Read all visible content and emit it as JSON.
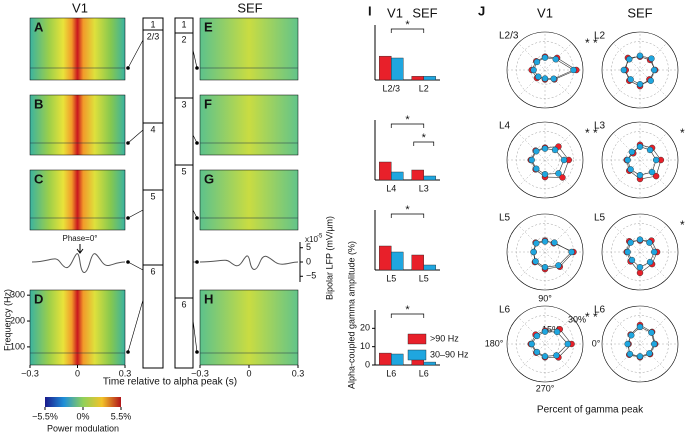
{
  "figure": {
    "v1_title": "V1",
    "sef_title": "SEF",
    "spectro_panels_v1": [
      "A",
      "B",
      "C",
      "D"
    ],
    "spectro_panels_sef": [
      "E",
      "F",
      "G",
      "H"
    ],
    "layers_v1": [
      "1",
      "2/3",
      "4",
      "5",
      "6"
    ],
    "layers_sef": [
      "1",
      "2",
      "3",
      "5",
      "6"
    ],
    "freq_label": "Frequency (Hz)",
    "freq_ticks": [
      100,
      200,
      300
    ],
    "freq_lim": [
      30,
      320
    ],
    "time_ticks": [
      {
        "value": -0.3,
        "label": "−0.3"
      },
      {
        "value": 0,
        "label": "0"
      },
      {
        "value": 0.3,
        "label": "0.3"
      }
    ],
    "time_lim": [
      -0.3,
      0.3
    ],
    "time_label": "Time relative to alpha peak (s)",
    "phase_label": "Phase=0°",
    "lfp_ticks": [
      5,
      0,
      {
        "value": -5,
        "label": "−5"
      }
    ],
    "lfp_lim": [
      -7,
      7
    ],
    "lfp_scale": "x10",
    "lfp_exp": "-5",
    "lfp_label": "Bipolar LFP (mV/µm)",
    "colorbar": {
      "lim": [
        -5.5,
        5.5
      ],
      "ticks": [
        {
          "value": -5.5,
          "label": "−5.5%"
        },
        {
          "value": 0,
          "label": "0%"
        },
        {
          "value": 5.5,
          "label": "5.5%"
        }
      ],
      "label": "Power modulation"
    },
    "panel_I": "I",
    "panel_J": "J",
    "I_v1": "V1",
    "I_sef": "SEF",
    "I_ylabel": "Alpha-coupled gamma amplitude (%)",
    "J_v1": "V1",
    "J_sef": "SEF",
    "J_xlabel": "Percent of gamma peak"
  },
  "chart_data": [
    {
      "type": "bar",
      "categories": [
        "L2/3",
        "L2"
      ],
      "ylim": [
        0,
        30
      ],
      "annotations": [
        "*"
      ],
      "series": [
        {
          "color": "#e8202a",
          "values": [
            13,
            2
          ]
        },
        {
          "color": "#1fa6df",
          "values": [
            12,
            2
          ]
        }
      ]
    },
    {
      "type": "bar",
      "categories": [
        "L4",
        "L3"
      ],
      "ylim": [
        0,
        30
      ],
      "annotations": [
        "*",
        "*"
      ],
      "series": [
        {
          "color": "#e8202a",
          "values": [
            9,
            5
          ]
        },
        {
          "color": "#1fa6df",
          "values": [
            4,
            2
          ]
        }
      ]
    },
    {
      "type": "bar",
      "categories": [
        "L5",
        "L5"
      ],
      "ylim": [
        0,
        30
      ],
      "annotations": [
        "*"
      ],
      "series": [
        {
          "color": "#e8202a",
          "values": [
            12,
            7.5
          ]
        },
        {
          "color": "#1fa6df",
          "values": [
            9,
            2.5
          ]
        }
      ]
    },
    {
      "type": "bar",
      "categories": [
        "L6",
        "L6"
      ],
      "ylim": [
        0,
        30
      ],
      "yticks": [
        0,
        10,
        20
      ],
      "annotations": [
        "*"
      ],
      "series": [
        {
          "name": ">90 Hz",
          "color": "#e8202a",
          "values": [
            6.5,
            3.3
          ]
        },
        {
          "name": "30–90 Hz",
          "color": "#1fa6df",
          "values": [
            6,
            1.6
          ]
        }
      ]
    },
    {
      "type": "polar",
      "title": "L2/3",
      "rlim": [
        0,
        40
      ],
      "angles": [
        0,
        45,
        90,
        135,
        180,
        225,
        270,
        315
      ],
      "annotations": [
        {
          "text": "*",
          "color": "#e8202a"
        },
        {
          "text": "*",
          "color": "#1fa6df"
        }
      ],
      "series": [
        {
          "color": "#e8202a",
          "values": [
            33,
            18,
            14,
            13,
            14,
            12,
            10,
            14
          ]
        },
        {
          "color": "#1fa6df",
          "values": [
            30,
            16,
            13,
            12,
            12,
            10,
            9,
            13
          ]
        }
      ]
    },
    {
      "type": "polar",
      "title": "L2",
      "rlim": [
        0,
        40
      ],
      "angles": [
        0,
        45,
        90,
        135,
        180,
        225,
        270,
        315
      ],
      "annotations": [],
      "series": [
        {
          "color": "#e8202a",
          "values": [
            16,
            15,
            14,
            18,
            15,
            16,
            17,
            14
          ]
        },
        {
          "color": "#1fa6df",
          "values": [
            15,
            17,
            15,
            16,
            17,
            14,
            15,
            16
          ]
        }
      ]
    },
    {
      "type": "polar",
      "title": "L4",
      "rlim": [
        0,
        40
      ],
      "angles": [
        0,
        45,
        90,
        135,
        180,
        225,
        270,
        315
      ],
      "annotations": [
        {
          "text": "*",
          "color": "#e8202a"
        },
        {
          "text": "*",
          "color": "#1fa6df"
        }
      ],
      "series": [
        {
          "color": "#e8202a",
          "values": [
            25,
            20,
            13,
            14,
            15,
            14,
            18,
            26
          ]
        },
        {
          "color": "#1fa6df",
          "values": [
            20,
            15,
            12,
            13,
            14,
            13,
            15,
            20
          ]
        }
      ]
    },
    {
      "type": "polar",
      "title": "L3",
      "rlim": [
        0,
        40
      ],
      "angles": [
        0,
        45,
        90,
        135,
        180,
        225,
        270,
        315
      ],
      "annotations": [
        {
          "text": "*",
          "color": "#e8202a"
        }
      ],
      "series": [
        {
          "color": "#e8202a",
          "values": [
            22,
            18,
            16,
            10,
            14,
            16,
            20,
            24
          ]
        },
        {
          "color": "#1fa6df",
          "values": [
            17,
            15,
            14,
            12,
            13,
            14,
            16,
            18
          ]
        }
      ]
    },
    {
      "type": "polar",
      "title": "L5",
      "rlim": [
        0,
        40
      ],
      "angles": [
        0,
        45,
        90,
        135,
        180,
        225,
        270,
        315
      ],
      "annotations": [],
      "series": [
        {
          "color": "#e8202a",
          "values": [
            30,
            13,
            12,
            14,
            12,
            15,
            18,
            22
          ]
        },
        {
          "color": "#1fa6df",
          "values": [
            28,
            14,
            11,
            13,
            12,
            14,
            16,
            20
          ]
        }
      ]
    },
    {
      "type": "polar",
      "title": "L5",
      "rlim": [
        0,
        40
      ],
      "angles": [
        0,
        45,
        90,
        135,
        180,
        225,
        270,
        315
      ],
      "annotations": [
        {
          "text": "*",
          "color": "#e8202a"
        }
      ],
      "series": [
        {
          "color": "#e8202a",
          "values": [
            18,
            17,
            12,
            16,
            14,
            14,
            22,
            18
          ]
        },
        {
          "color": "#1fa6df",
          "values": [
            15,
            14,
            13,
            14,
            13,
            12,
            16,
            15
          ]
        }
      ]
    },
    {
      "type": "polar",
      "title": "L6",
      "rlim": [
        0,
        40
      ],
      "angles": [
        0,
        45,
        90,
        135,
        180,
        225,
        270,
        315
      ],
      "annotations": [
        {
          "text": "*",
          "color": "#e8202a"
        },
        {
          "text": "*",
          "color": "#1fa6df"
        }
      ],
      "rticks": [
        {
          "value": 15,
          "label": "15%"
        },
        {
          "value": 30,
          "label": "30%"
        }
      ],
      "thetaticks": [
        {
          "value": 0,
          "label": "0°"
        },
        {
          "value": 90,
          "label": "90°"
        },
        {
          "value": 180,
          "label": "180°"
        },
        {
          "value": 270,
          "label": "270°"
        }
      ],
      "series": [
        {
          "color": "#e8202a",
          "values": [
            28,
            22,
            14,
            14,
            15,
            13,
            14,
            20
          ]
        },
        {
          "color": "#1fa6df",
          "values": [
            24,
            18,
            13,
            12,
            14,
            12,
            13,
            17
          ]
        }
      ]
    },
    {
      "type": "polar",
      "title": "L6",
      "rlim": [
        0,
        40
      ],
      "angles": [
        0,
        45,
        90,
        135,
        180,
        225,
        270,
        315
      ],
      "annotations": [],
      "series": [
        {
          "color": "#e8202a",
          "values": [
            16,
            18,
            20,
            14,
            12,
            16,
            14,
            15
          ]
        },
        {
          "color": "#1fa6df",
          "values": [
            15,
            17,
            18,
            13,
            13,
            15,
            13,
            14
          ]
        }
      ]
    }
  ]
}
